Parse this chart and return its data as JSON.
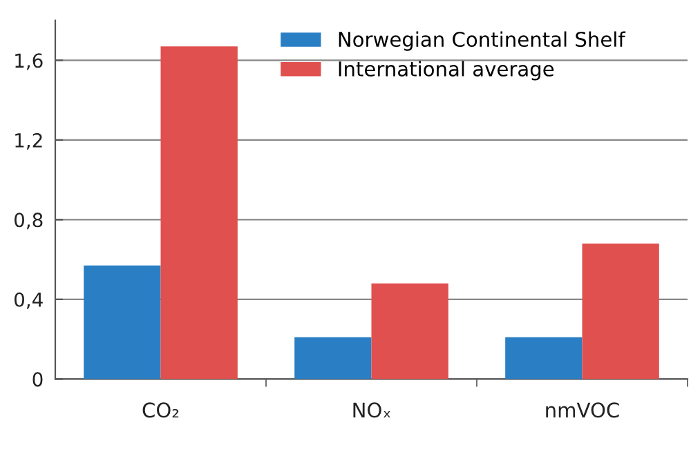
{
  "chart_data": {
    "type": "bar",
    "categories": [
      "CO₂",
      "NOₓ",
      "nmVOC"
    ],
    "series": [
      {
        "name": "Norwegian Continental Shelf",
        "color": "#2a7fc4",
        "values": [
          0.57,
          0.21,
          0.21
        ]
      },
      {
        "name": "International average",
        "color": "#e0504e",
        "values": [
          1.67,
          0.48,
          0.68
        ]
      }
    ],
    "ylim": [
      0,
      1.8
    ],
    "yticks": [
      0,
      {
        "value": 0.4,
        "label": "0,4"
      },
      {
        "value": 0.8,
        "label": "0,8"
      },
      {
        "value": 1.2,
        "label": "1,2"
      },
      {
        "value": 1.6,
        "label": "1,6"
      }
    ],
    "grid": "y",
    "legend": "top right"
  }
}
